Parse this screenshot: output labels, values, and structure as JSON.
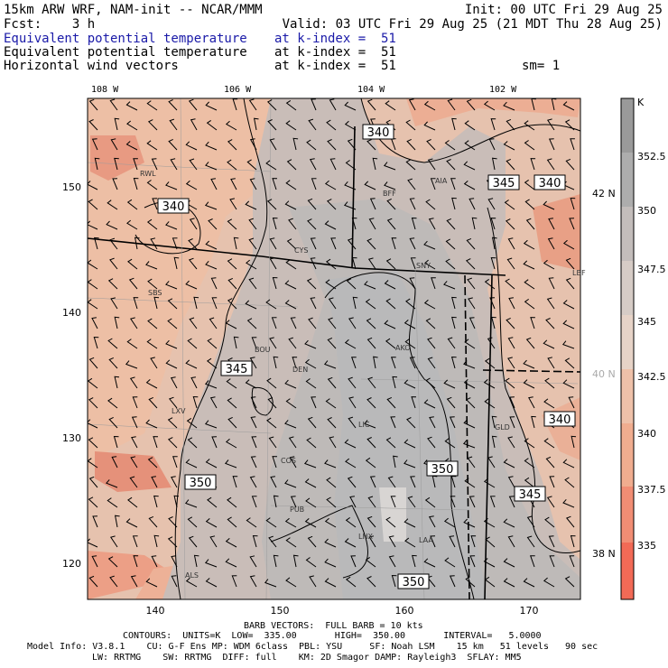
{
  "header": {
    "model": "15km ARW WRF, NAM-init -- NCAR/MMM",
    "init": "Init: 00 UTC Fri 29 Aug 25",
    "fcst": "Fcst:    3 h",
    "valid": "Valid: 03 UTC Fri 29 Aug 25 (21 MDT Thu 28 Aug 25)",
    "fields": [
      {
        "name": "Equivalent potential temperature",
        "level": "at k-index =  51",
        "color": "#1a1aa8"
      },
      {
        "name": "Equivalent potential temperature",
        "level": "at k-index =  51",
        "color": "#000000"
      },
      {
        "name": "Horizontal wind vectors",
        "level": "at k-index =  51",
        "color": "#000000"
      }
    ],
    "smoothing": "sm= 1"
  },
  "map": {
    "lon_labels": [
      "108 W",
      "106 W",
      "104 W",
      "102 W"
    ],
    "lat_labels_right": [
      "42 N",
      "40 N",
      "38 N"
    ],
    "x_ticks": [
      "140",
      "150",
      "160",
      "170"
    ],
    "y_ticks": [
      "150",
      "140",
      "130",
      "120"
    ],
    "stations": [
      "RWL",
      "BFF",
      "AIA",
      "CYS",
      "SNY",
      "LBF",
      "SBS",
      "BOU",
      "DEN",
      "AKO",
      "LXV",
      "LIC",
      "GLD",
      "COS",
      "PUB",
      "LHX",
      "LAA",
      "ALS"
    ],
    "contour_labels": [
      "340",
      "340",
      "345",
      "340",
      "345",
      "350",
      "340",
      "350",
      "345",
      "350"
    ]
  },
  "colorbar": {
    "unit": "K",
    "ticks": [
      "352.5",
      "350",
      "347.5",
      "345",
      "342.5",
      "340",
      "337.5",
      "335"
    ]
  },
  "footer": {
    "barb_vectors": "BARB VECTORS:  FULL BARB = 10 kts",
    "contours": "CONTOURS:  UNITS=K  LOW=  335.00       HIGH=  350.00       INTERVAL=   5.0000",
    "model_info": "Model Info: V3.8.1    CU: G-F Ens MP: WDM 6class  PBL: YSU     SF: Noah LSM    15 km   51 levels   90 sec",
    "physics": "LW: RRTMG    SW: RRTMG  DIFF: full    KM: 2D Smagor DAMP: Rayleigh3  SFLAY: MM5"
  }
}
